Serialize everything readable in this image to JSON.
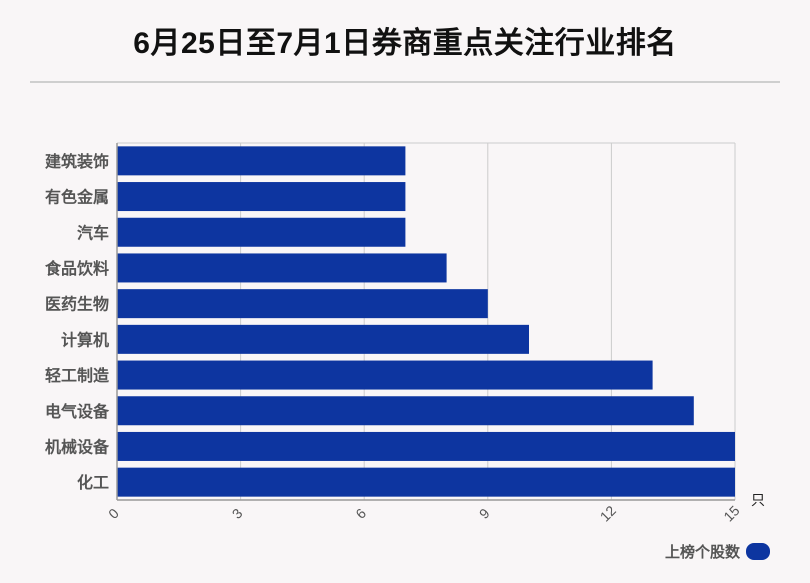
{
  "title": "6月25日至7月1日券商重点关注行业排名",
  "legend": {
    "label": "上榜个股数"
  },
  "colors": {
    "bar": "#0d35a0",
    "grid": "#cccccc",
    "axis": "#999999",
    "label": "#555555"
  },
  "chart_data": {
    "type": "bar",
    "orientation": "horizontal",
    "categories": [
      "建筑装饰",
      "有色金属",
      "汽车",
      "食品饮料",
      "医药生物",
      "计算机",
      "轻工制造",
      "电气设备",
      "机械设备",
      "化工"
    ],
    "series": [
      {
        "name": "上榜个股数",
        "values": [
          7,
          7,
          7,
          8,
          9,
          10,
          13,
          14,
          15,
          15
        ]
      }
    ],
    "xlim": [
      0,
      15
    ],
    "xticks": [
      0,
      3,
      6,
      9,
      12,
      15
    ],
    "xunit": "只",
    "grid": true,
    "legend_position": "bottom-right"
  }
}
